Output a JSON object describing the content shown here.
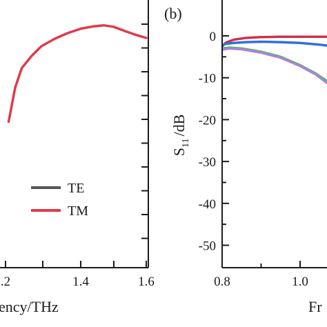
{
  "chart_data": [
    {
      "type": "line",
      "panel": "",
      "xlabel": "ency/THz",
      "ylabel": "",
      "xlim": [
        0.8,
        1.6
      ],
      "ylim": [
        -50,
        5
      ],
      "xticks": [
        ".2",
        "1.4",
        "1.6"
      ],
      "legend": {
        "placement": "bottom-right",
        "entries": [
          "TE",
          "TM"
        ]
      },
      "series": [
        {
          "name": "TE",
          "color": "#555555",
          "x": [],
          "y": []
        },
        {
          "name": "TM",
          "color": "#e03a48",
          "x": [
            1.18,
            1.2,
            1.22,
            1.25,
            1.28,
            1.32,
            1.36,
            1.4,
            1.44,
            1.47,
            1.5,
            1.54,
            1.57,
            1.6
          ],
          "y": [
            -20,
            -13,
            -9,
            -6.5,
            -4.5,
            -3,
            -1.8,
            -0.9,
            -0.4,
            -0.2,
            -0.5,
            -1.5,
            -2.2,
            -2.8
          ]
        }
      ]
    },
    {
      "type": "line",
      "panel": "(b)",
      "xlabel": "Fr",
      "ylabel_main": "S",
      "ylabel_sub": "11",
      "ylabel_unit": "/dB",
      "xlim": [
        0.8,
        1.17
      ],
      "ylim": [
        -53,
        3
      ],
      "xticks": [
        0.8,
        1.0
      ],
      "yticks": [
        0,
        -10,
        -20,
        -30,
        -40,
        -50
      ],
      "series": [
        {
          "color": "#d0304a",
          "x": [
            0.8,
            0.81,
            0.83,
            0.86,
            0.9,
            0.95,
            1.0,
            1.05,
            1.1,
            1.17
          ],
          "y": [
            -2.5,
            -1.6,
            -0.9,
            -0.5,
            -0.3,
            -0.2,
            -0.2,
            -0.2,
            -0.2,
            -0.2
          ]
        },
        {
          "color": "#2f6fe0",
          "x": [
            0.8,
            0.81,
            0.83,
            0.86,
            0.9,
            0.95,
            1.0,
            1.05,
            1.1,
            1.17
          ],
          "y": [
            -2.2,
            -1.9,
            -1.7,
            -1.5,
            -1.4,
            -1.5,
            -1.7,
            -2.1,
            -2.7,
            -3.5
          ]
        },
        {
          "color": "#3cc43c",
          "x": [
            0.8,
            0.82,
            0.85,
            0.9,
            0.95,
            1.0,
            1.04,
            1.08,
            1.11,
            1.14,
            1.17
          ],
          "y": [
            -3.0,
            -2.8,
            -3.0,
            -3.8,
            -5.0,
            -7.0,
            -9.0,
            -11.5,
            -13.5,
            -16.0,
            -18.5
          ]
        },
        {
          "color": "#b080e0",
          "x": [
            0.8,
            0.82,
            0.85,
            0.9,
            0.95,
            1.0,
            1.04,
            1.08,
            1.11,
            1.13,
            1.15,
            1.17
          ],
          "y": [
            -3.3,
            -3.0,
            -3.2,
            -4.0,
            -5.2,
            -7.2,
            -9.2,
            -12.0,
            -15.0,
            -17.5,
            -19.5,
            -22.0
          ]
        }
      ]
    }
  ]
}
